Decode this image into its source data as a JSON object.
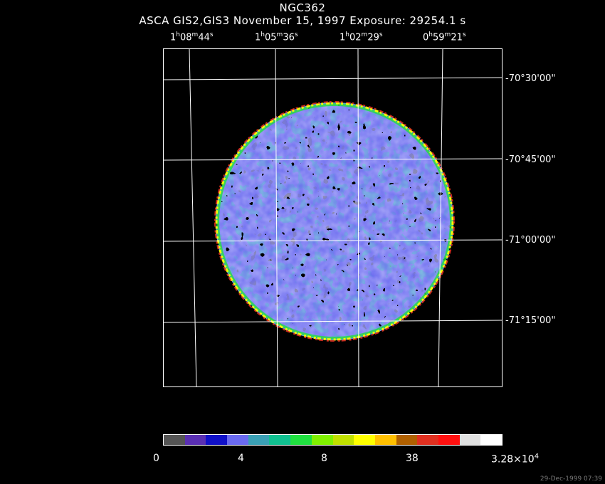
{
  "title": "NGC362",
  "subtitle": "ASCA GIS2,GIS3 November 15, 1997 Exposure: 29254.1 s",
  "ra_labels": [
    {
      "h": "1",
      "m": "08",
      "s": "44"
    },
    {
      "h": "1",
      "m": "05",
      "s": "36"
    },
    {
      "h": "1",
      "m": "02",
      "s": "29"
    },
    {
      "h": "0",
      "m": "59",
      "s": "21"
    }
  ],
  "dec_labels": [
    "-70°30'00\"",
    "-70°45'00\"",
    "-71°00'00\"",
    "-71°15'00\""
  ],
  "colorbar": {
    "colors": [
      "#555555",
      "#5a2fb3",
      "#1010c8",
      "#6a6af0",
      "#3aa0b5",
      "#10c090",
      "#20e040",
      "#80f000",
      "#c0e000",
      "#ffff00",
      "#ffc000",
      "#b06000",
      "#e03020",
      "#ff1010",
      "#e0e0e0",
      "#ffffff"
    ],
    "tick_labels": [
      "0",
      "4",
      "8",
      "38"
    ],
    "max_mantissa": "3.28×10",
    "max_exponent": "4"
  },
  "timestamp": "29-Dec-1999 07:39",
  "image": {
    "description": "X-ray image: circular field of view filled with mottled blue/green/dark counts, bright yellow-red rim",
    "palette_bg": "#000000"
  }
}
